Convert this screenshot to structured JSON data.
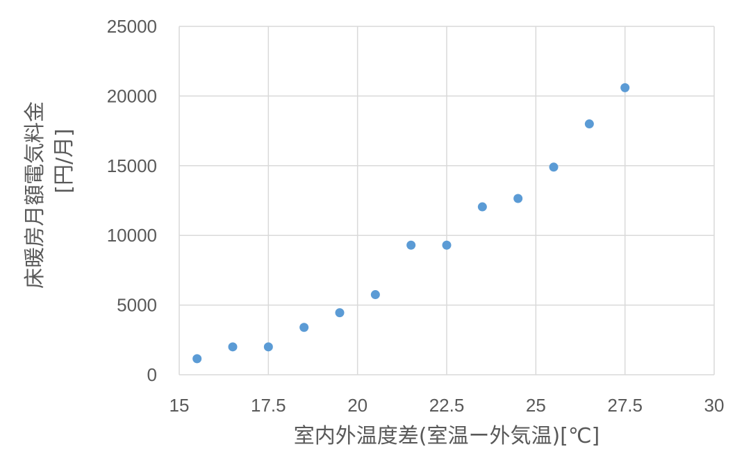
{
  "chart_data": {
    "type": "scatter",
    "xlabel": "室内外温度差(室温ー外気温)[℃]",
    "ylabel": [
      "床暖房月額電気料金",
      "[円/月]"
    ],
    "xlim": [
      15,
      30
    ],
    "ylim": [
      0,
      25000
    ],
    "x_ticks": [
      "15",
      "17.5",
      "20",
      "22.5",
      "25",
      "27.5",
      "30"
    ],
    "y_ticks": [
      "0",
      "5000",
      "10000",
      "15000",
      "20000",
      "25000"
    ],
    "grid": true,
    "legend": "none",
    "marker_color": "#5b9bd5",
    "series": [
      {
        "points": [
          {
            "x": 15.5,
            "y": 1150
          },
          {
            "x": 16.5,
            "y": 2000
          },
          {
            "x": 17.5,
            "y": 2000
          },
          {
            "x": 18.5,
            "y": 3400
          },
          {
            "x": 19.5,
            "y": 4450
          },
          {
            "x": 20.5,
            "y": 5750
          },
          {
            "x": 21.5,
            "y": 9300
          },
          {
            "x": 22.5,
            "y": 9300
          },
          {
            "x": 23.5,
            "y": 12050
          },
          {
            "x": 24.5,
            "y": 12650
          },
          {
            "x": 25.5,
            "y": 14900
          },
          {
            "x": 26.5,
            "y": 18000
          },
          {
            "x": 27.5,
            "y": 20600
          }
        ]
      }
    ]
  }
}
